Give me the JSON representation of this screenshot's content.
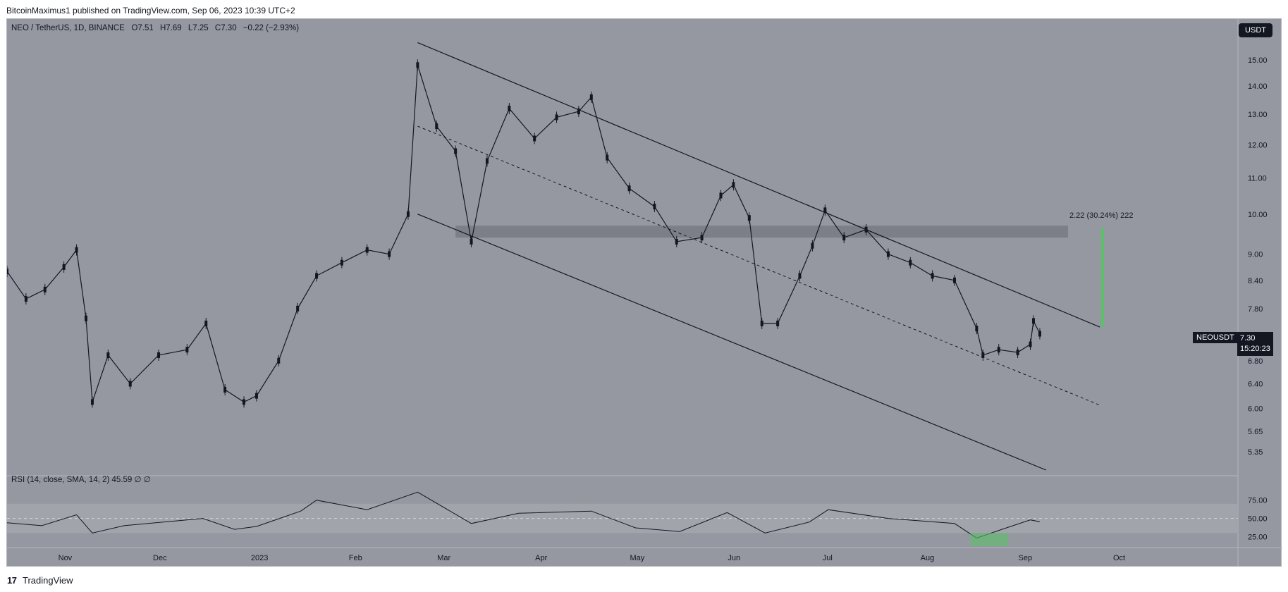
{
  "header": {
    "text": "BitcoinMaximus1 published on TradingView.com, Sep 06, 2023 10:39 UTC+2"
  },
  "footer": {
    "logo": "17",
    "brand": "TradingView"
  },
  "legend": {
    "symbol": "NEO / TetherUS, 1D, BINANCE",
    "o_label": "O",
    "o_value": "7.51",
    "h_label": "H",
    "h_value": "7.69",
    "l_label": "L",
    "l_value": "7.25",
    "c_label": "C",
    "c_value": "7.30",
    "change": "−0.22 (−2.93%)"
  },
  "currency_button": "USDT",
  "ticker_badge": "NEOUSDT",
  "last_price": "7.30",
  "countdown": "15:20:23",
  "measure_label": "2.22 (30.24%) 222",
  "rsi_legend": "RSI (14, close, SMA, 14, 2)  45.59  ∅  ∅",
  "colors": {
    "background": "#9598a1",
    "resistance_zone": "#7c7f88",
    "measure_bar": "#5cc06b",
    "rsi_band": "#a2a4ab",
    "candle": "#131722"
  },
  "chart_data": {
    "type": "candlestick",
    "symbol": "NEO / TetherUS",
    "timeframe": "1D",
    "exchange": "BINANCE",
    "ylim": [
      5.1,
      15.8
    ],
    "y_scale": "log",
    "y_ticks": [
      "15.00",
      "14.00",
      "13.00",
      "12.00",
      "11.00",
      "10.00",
      "9.00",
      "8.40",
      "7.80",
      "7.30",
      "6.80",
      "6.40",
      "6.00",
      "5.65",
      "5.35"
    ],
    "x_ticks": [
      "Nov",
      "Dec",
      "2023",
      "Feb",
      "Mar",
      "Apr",
      "May",
      "Jun",
      "Jul",
      "Aug",
      "Sep",
      "Oct"
    ],
    "series_close_points": [
      {
        "x": "2022-10-14",
        "y": 8.6
      },
      {
        "x": "2022-10-20",
        "y": 8.0
      },
      {
        "x": "2022-10-26",
        "y": 8.2
      },
      {
        "x": "2022-11-01",
        "y": 8.7
      },
      {
        "x": "2022-11-05",
        "y": 9.1
      },
      {
        "x": "2022-11-08",
        "y": 7.6
      },
      {
        "x": "2022-11-10",
        "y": 6.1
      },
      {
        "x": "2022-11-15",
        "y": 6.9
      },
      {
        "x": "2022-11-22",
        "y": 6.4
      },
      {
        "x": "2022-12-01",
        "y": 6.9
      },
      {
        "x": "2022-12-10",
        "y": 7.0
      },
      {
        "x": "2022-12-16",
        "y": 7.5
      },
      {
        "x": "2022-12-22",
        "y": 6.3
      },
      {
        "x": "2022-12-28",
        "y": 6.1
      },
      {
        "x": "2023-01-01",
        "y": 6.2
      },
      {
        "x": "2023-01-08",
        "y": 6.8
      },
      {
        "x": "2023-01-14",
        "y": 7.8
      },
      {
        "x": "2023-01-20",
        "y": 8.5
      },
      {
        "x": "2023-01-28",
        "y": 8.8
      },
      {
        "x": "2023-02-05",
        "y": 9.1
      },
      {
        "x": "2023-02-12",
        "y": 9.0
      },
      {
        "x": "2023-02-18",
        "y": 10.0
      },
      {
        "x": "2023-02-21",
        "y": 14.8
      },
      {
        "x": "2023-02-27",
        "y": 12.6
      },
      {
        "x": "2023-03-05",
        "y": 11.8
      },
      {
        "x": "2023-03-10",
        "y": 9.3
      },
      {
        "x": "2023-03-15",
        "y": 11.5
      },
      {
        "x": "2023-03-22",
        "y": 13.2
      },
      {
        "x": "2023-03-30",
        "y": 12.2
      },
      {
        "x": "2023-04-06",
        "y": 12.9
      },
      {
        "x": "2023-04-13",
        "y": 13.1
      },
      {
        "x": "2023-04-17",
        "y": 13.6
      },
      {
        "x": "2023-04-22",
        "y": 11.6
      },
      {
        "x": "2023-04-29",
        "y": 10.7
      },
      {
        "x": "2023-05-07",
        "y": 10.2
      },
      {
        "x": "2023-05-14",
        "y": 9.3
      },
      {
        "x": "2023-05-22",
        "y": 9.4
      },
      {
        "x": "2023-05-28",
        "y": 10.5
      },
      {
        "x": "2023-06-01",
        "y": 10.8
      },
      {
        "x": "2023-06-06",
        "y": 9.9
      },
      {
        "x": "2023-06-10",
        "y": 7.5
      },
      {
        "x": "2023-06-15",
        "y": 7.5
      },
      {
        "x": "2023-06-22",
        "y": 8.5
      },
      {
        "x": "2023-06-26",
        "y": 9.2
      },
      {
        "x": "2023-06-30",
        "y": 10.1
      },
      {
        "x": "2023-07-06",
        "y": 9.4
      },
      {
        "x": "2023-07-13",
        "y": 9.6
      },
      {
        "x": "2023-07-20",
        "y": 9.0
      },
      {
        "x": "2023-07-27",
        "y": 8.8
      },
      {
        "x": "2023-08-03",
        "y": 8.5
      },
      {
        "x": "2023-08-10",
        "y": 8.4
      },
      {
        "x": "2023-08-17",
        "y": 7.4
      },
      {
        "x": "2023-08-19",
        "y": 6.9
      },
      {
        "x": "2023-08-24",
        "y": 7.0
      },
      {
        "x": "2023-08-30",
        "y": 6.95
      },
      {
        "x": "2023-09-03",
        "y": 7.1
      },
      {
        "x": "2023-09-04",
        "y": 7.55
      },
      {
        "x": "2023-09-06",
        "y": 7.3
      }
    ],
    "descending_channel": {
      "upper": [
        {
          "x": "2023-02-21",
          "y": 15.7
        },
        {
          "x": "2023-09-25",
          "y": 7.43
        }
      ],
      "middle": [
        {
          "x": "2023-02-21",
          "y": 12.6
        },
        {
          "x": "2023-09-25",
          "y": 6.05
        }
      ],
      "lower": [
        {
          "x": "2023-02-21",
          "y": 10.0
        },
        {
          "x": "2023-09-08",
          "y": 5.1
        }
      ]
    },
    "resistance_zone": [
      9.4,
      9.7
    ],
    "rsi": {
      "label": "RSI (14, close, SMA, 14, 2)",
      "value": 45.59,
      "y_ticks": [
        "75.00",
        "50.00",
        "25.00"
      ],
      "ylim": [
        10,
        95
      ],
      "points": [
        {
          "x": "2022-10-14",
          "y": 44
        },
        {
          "x": "2022-10-25",
          "y": 40
        },
        {
          "x": "2022-11-05",
          "y": 55
        },
        {
          "x": "2022-11-10",
          "y": 30
        },
        {
          "x": "2022-11-20",
          "y": 40
        },
        {
          "x": "2022-12-15",
          "y": 50
        },
        {
          "x": "2022-12-25",
          "y": 35
        },
        {
          "x": "2023-01-01",
          "y": 39
        },
        {
          "x": "2023-01-15",
          "y": 60
        },
        {
          "x": "2023-01-20",
          "y": 75
        },
        {
          "x": "2023-02-05",
          "y": 62
        },
        {
          "x": "2023-02-21",
          "y": 86
        },
        {
          "x": "2023-03-10",
          "y": 43
        },
        {
          "x": "2023-03-25",
          "y": 57
        },
        {
          "x": "2023-04-17",
          "y": 60
        },
        {
          "x": "2023-05-01",
          "y": 37
        },
        {
          "x": "2023-05-15",
          "y": 32
        },
        {
          "x": "2023-05-30",
          "y": 58
        },
        {
          "x": "2023-06-11",
          "y": 30
        },
        {
          "x": "2023-06-25",
          "y": 45
        },
        {
          "x": "2023-07-01",
          "y": 62
        },
        {
          "x": "2023-07-20",
          "y": 50
        },
        {
          "x": "2023-08-10",
          "y": 43
        },
        {
          "x": "2023-08-17",
          "y": 23
        },
        {
          "x": "2023-08-25",
          "y": 35
        },
        {
          "x": "2023-09-03",
          "y": 48
        },
        {
          "x": "2023-09-06",
          "y": 45.59
        }
      ]
    },
    "last_price": 7.3
  }
}
